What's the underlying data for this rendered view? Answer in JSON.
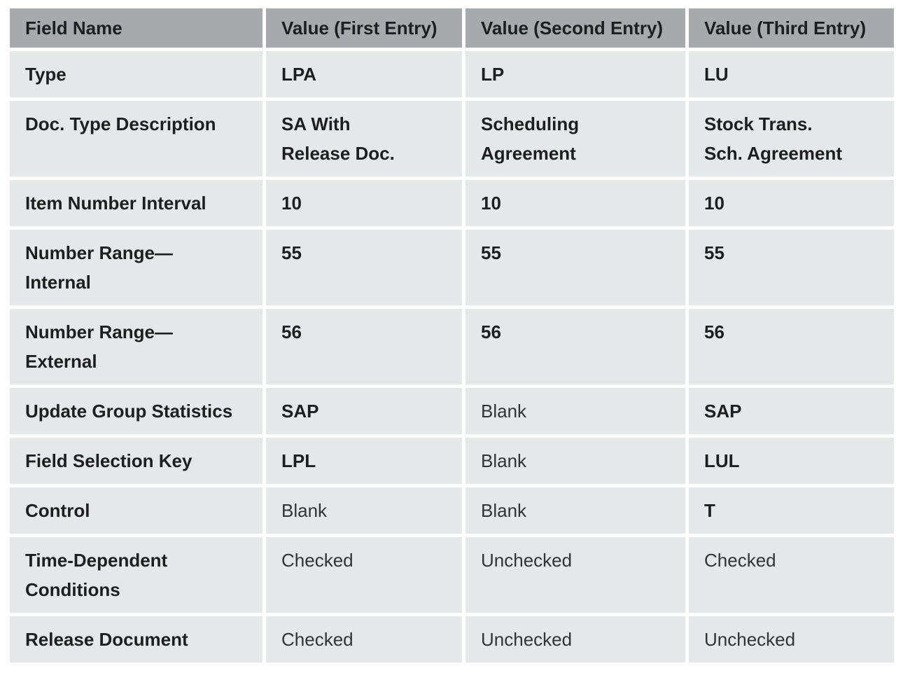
{
  "table": {
    "header": [
      "Field Name",
      "Value (First Entry)",
      "Value (Second Entry)",
      "Value (Third Entry)"
    ],
    "rows": [
      [
        "Type",
        "LPA",
        "LP",
        "LU"
      ],
      [
        "Doc. Type Description",
        "SA With\nRelease Doc.",
        "Scheduling\nAgreement",
        "Stock Trans.\nSch. Agreement"
      ],
      [
        "Item Number Interval",
        "10",
        "10",
        "10"
      ],
      [
        "Number Range—\nInternal",
        "55",
        "55",
        "55"
      ],
      [
        "Number Range—\nExternal",
        "56",
        "56",
        "56"
      ],
      [
        "Update Group Statistics",
        "SAP",
        "Blank",
        "SAP"
      ],
      [
        "Field Selection Key",
        "LPL",
        "Blank",
        "LUL"
      ],
      [
        "Control",
        "Blank",
        "Blank",
        "T"
      ],
      [
        "Time-Dependent\nConditions",
        "Checked",
        "Unchecked",
        "Checked"
      ],
      [
        "Release Document",
        "Checked",
        "Unchecked",
        "Unchecked"
      ]
    ]
  }
}
